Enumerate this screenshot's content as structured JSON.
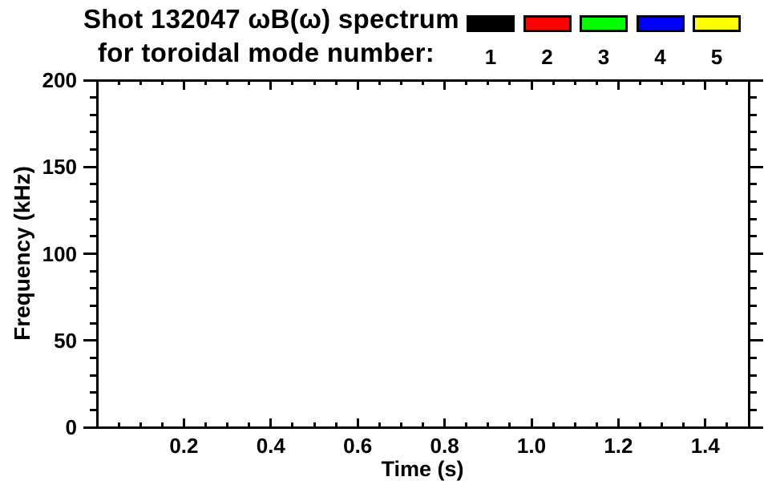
{
  "page": {
    "background": "#ffffff",
    "text_color": "#000000"
  },
  "chart_data": {
    "type": "scatter",
    "title": "Shot 132047 ωB(ω) spectrum",
    "subtitle": "for toroidal mode number:",
    "xlabel": "Time (s)",
    "ylabel": "Frequency (kHz)",
    "xlim": [
      0,
      1.5
    ],
    "ylim": [
      0,
      200
    ],
    "x_major_ticks": [
      0.2,
      0.4,
      0.6,
      0.8,
      1.0,
      1.2,
      1.4
    ],
    "x_tick_labels": [
      "0.2",
      "0.4",
      "0.6",
      "0.8",
      "1.0",
      "1.2",
      "1.4"
    ],
    "y_major_ticks": [
      0,
      50,
      100,
      150,
      200
    ],
    "y_tick_labels": [
      "0",
      "50",
      "100",
      "150",
      "200"
    ],
    "x_minor_interval": 0.05,
    "y_minor_interval": 10,
    "grid": false,
    "axis_color": "#000000",
    "plot_background": "#ffffff",
    "series": [],
    "legend": {
      "position": "top-right",
      "entries": [
        {
          "label": "1",
          "color": "#000000"
        },
        {
          "label": "2",
          "color": "#ff0000"
        },
        {
          "label": "3",
          "color": "#00ff00"
        },
        {
          "label": "4",
          "color": "#0000ff"
        },
        {
          "label": "5",
          "color": "#ffff00"
        }
      ]
    }
  }
}
